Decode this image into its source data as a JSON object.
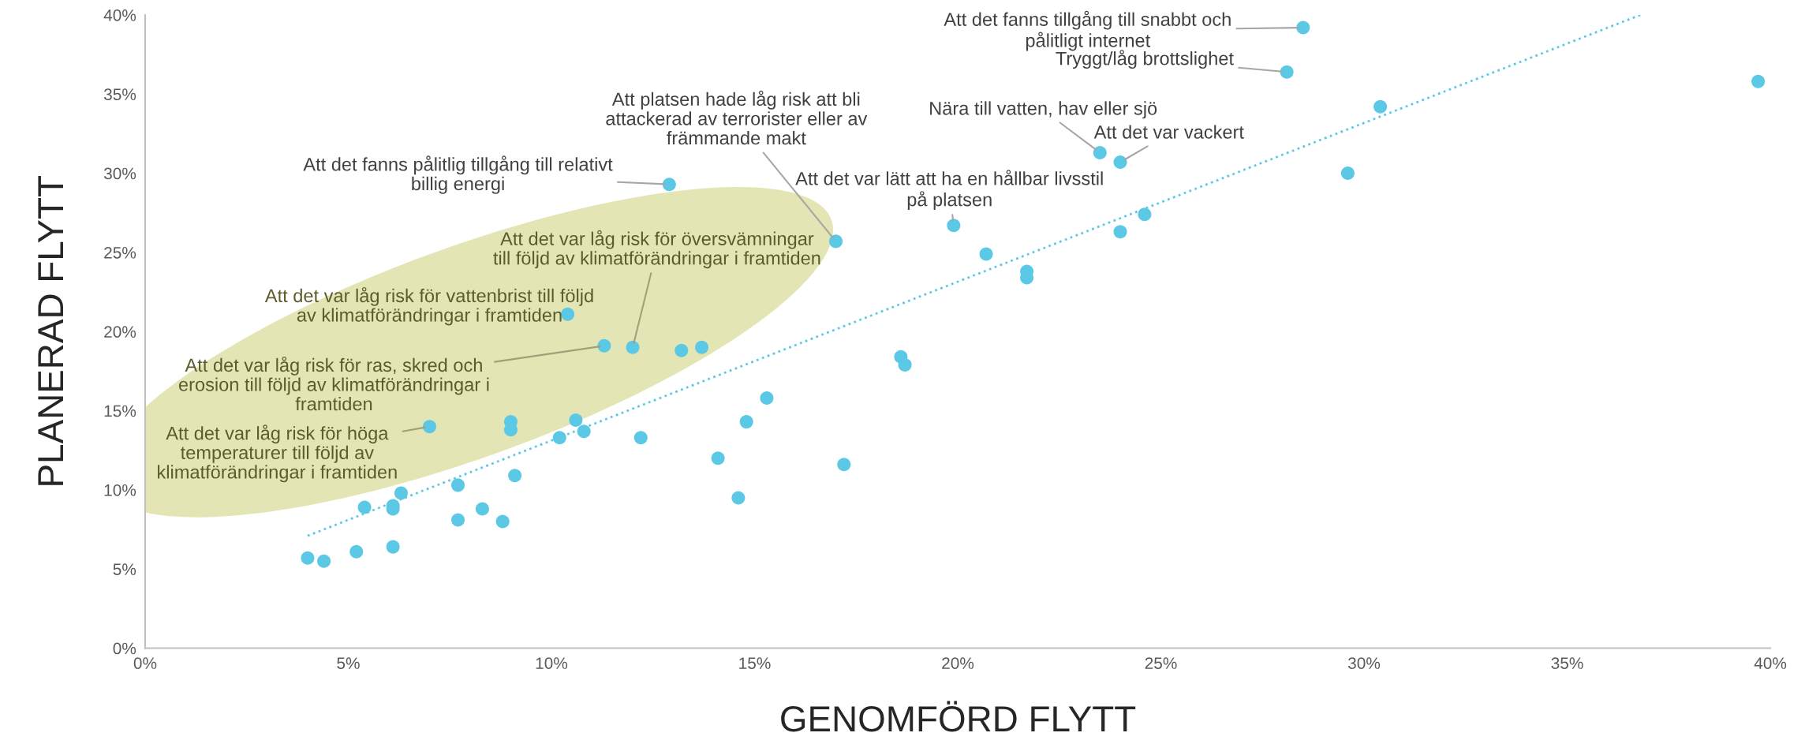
{
  "chart_data": {
    "type": "scatter",
    "xlabel": "GENOMFÖRD FLYTT",
    "ylabel": "PLANERAD FLYTT",
    "xlim": [
      0,
      40
    ],
    "ylim": [
      0,
      40
    ],
    "xticks": [
      {
        "value": 0,
        "label": "0%"
      },
      {
        "value": 5,
        "label": "5%"
      },
      {
        "value": 10,
        "label": "10%"
      },
      {
        "value": 15,
        "label": "15%"
      },
      {
        "value": 20,
        "label": "20%"
      },
      {
        "value": 25,
        "label": "25%"
      },
      {
        "value": 30,
        "label": "30%"
      },
      {
        "value": 35,
        "label": "35%"
      },
      {
        "value": 40,
        "label": "40%"
      }
    ],
    "yticks": [
      {
        "value": 0,
        "label": "0%"
      },
      {
        "value": 5,
        "label": "5%"
      },
      {
        "value": 10,
        "label": "10%"
      },
      {
        "value": 15,
        "label": "15%"
      },
      {
        "value": 20,
        "label": "20%"
      },
      {
        "value": 25,
        "label": "25%"
      },
      {
        "value": 30,
        "label": "30%"
      },
      {
        "value": 35,
        "label": "35%"
      },
      {
        "value": 40,
        "label": "40%"
      }
    ],
    "series": [
      {
        "marker": "circle",
        "color": "#5bc9e6",
        "x": [
          4.0,
          4.4,
          5.2,
          6.1,
          5.4,
          6.1,
          6.1,
          6.3,
          7.0,
          7.7,
          7.7,
          8.3,
          8.8,
          9.1,
          9.0,
          9.0,
          10.4,
          11.3,
          12.0,
          13.2,
          13.7,
          10.2,
          10.6,
          10.8,
          12.2,
          14.1,
          14.6,
          14.8,
          15.3,
          12.9,
          17.0,
          17.2,
          18.6,
          18.7,
          19.9,
          20.7,
          21.7,
          21.7,
          23.5,
          24.0,
          24.0,
          24.6,
          28.1,
          28.5,
          29.6,
          30.4,
          39.7
        ],
        "values": [
          5.7,
          5.5,
          6.1,
          6.4,
          8.9,
          8.8,
          9.0,
          9.8,
          14.0,
          10.3,
          8.1,
          8.8,
          8.0,
          10.9,
          14.3,
          13.8,
          21.1,
          19.1,
          19.0,
          18.8,
          19.0,
          13.3,
          14.4,
          13.7,
          13.3,
          12.0,
          9.5,
          14.3,
          15.8,
          29.3,
          25.7,
          11.6,
          18.4,
          17.9,
          26.7,
          24.9,
          23.8,
          23.4,
          31.3,
          30.7,
          26.3,
          27.4,
          36.4,
          39.2,
          30.0,
          34.2,
          35.8
        ]
      },
      {
        "type": "line",
        "marker": "none",
        "color": "#5bc9e6",
        "line_style": "dotted",
        "x": [
          4.0,
          36.8
        ],
        "values": [
          7.1,
          40.0
        ]
      }
    ],
    "annotations": [
      {
        "text": "Att det fanns tillgång till snabbt och\npålitligt internet",
        "x": 28.5,
        "y": 39.2
      },
      {
        "text": "Tryggt/låg brottslighet",
        "x": 28.1,
        "y": 36.4
      },
      {
        "text": "Att platsen hade låg risk att bli\nattackerad av terrorister eller av\nfrämmande makt",
        "x": 17.0,
        "y": 25.7
      },
      {
        "text": "Att det fanns pålitlig tillgång till relativt\nbillig energi",
        "x": 12.9,
        "y": 29.3
      },
      {
        "text": "Att det var lätt att ha en hållbar livsstil\npå platsen",
        "x": 19.9,
        "y": 26.7
      },
      {
        "text": "Nära till vatten, hav eller sjö",
        "x": 23.5,
        "y": 31.3
      },
      {
        "text": "Att det var vackert",
        "x": 24.0,
        "y": 30.7
      },
      {
        "text": "Att det var låg risk för översvämningar\ntill följd av klimatförändringar i framtiden",
        "x": 12.0,
        "y": 19.0
      },
      {
        "text": "Att det var låg risk för vattenbrist till följd\nav klimatförändringar i framtiden",
        "x": 10.4,
        "y": 21.1
      },
      {
        "text": "Att det var låg risk för ras, skred och\nerosion till följd av klimatförändringar i\nframtiden",
        "x": 11.3,
        "y": 19.1
      },
      {
        "text": "Att det var låg risk för höga\ntemperaturer till följd av\nklimatförändringar i framtiden",
        "x": 7.0,
        "y": 14.0
      }
    ]
  }
}
